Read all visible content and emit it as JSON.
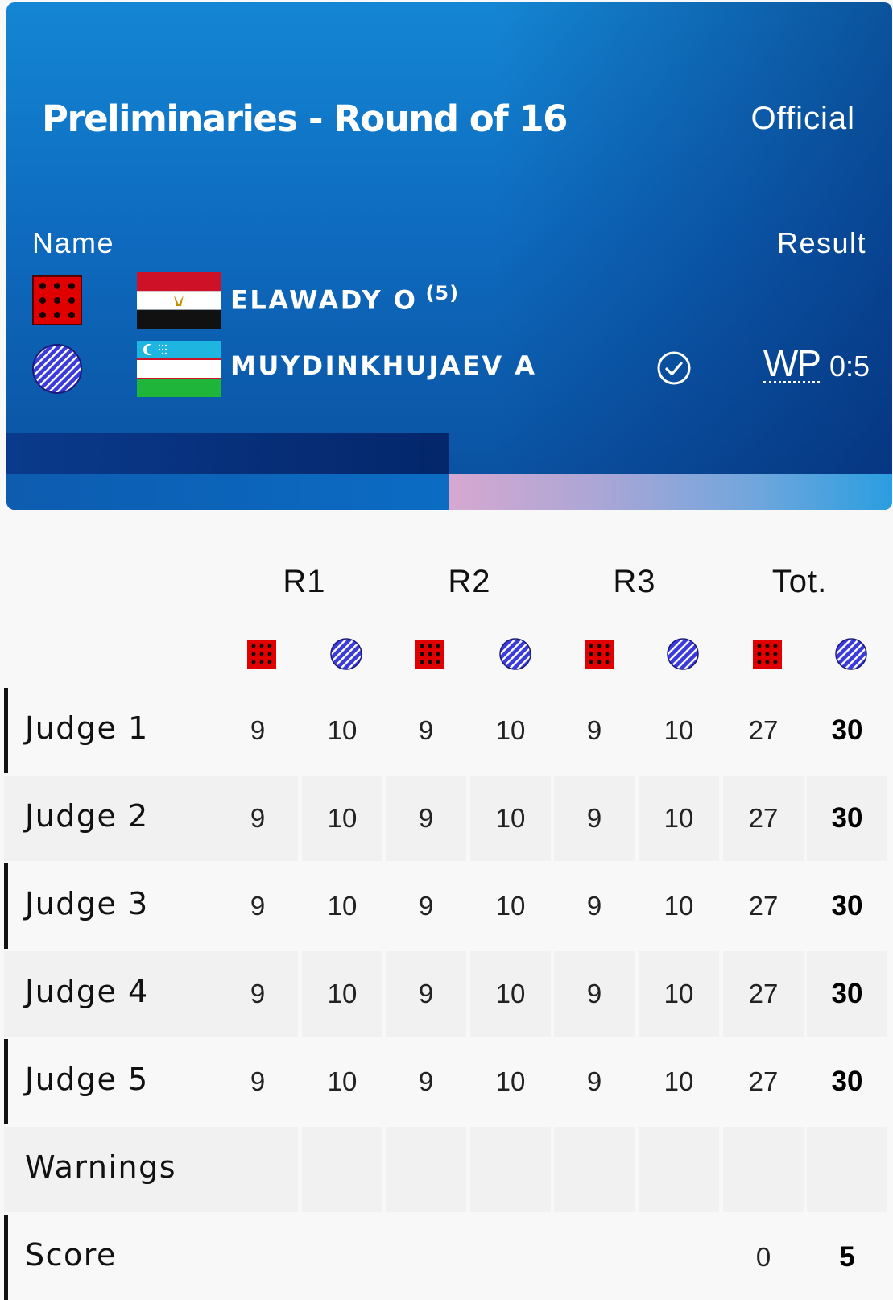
{
  "header": {
    "title": "Preliminaries - Round of 16",
    "status": "Official",
    "name_label": "Name",
    "result_label": "Result"
  },
  "athletes": {
    "red": {
      "corner": "red-corner-icon",
      "flag": "egypt-flag",
      "name": "ELAWADY O",
      "seed": "(5)"
    },
    "blue": {
      "corner": "blue-corner-icon",
      "flag": "uzbekistan-flag",
      "name": "MUYDINKHUJAEV A",
      "winner_icon": "check-circle-icon",
      "result_code": "WP",
      "score": "0:5"
    }
  },
  "colors": {
    "red_corner": "#e00000",
    "blue_corner": "#3b3bdc",
    "header_blue": "#0e6bbf"
  },
  "table": {
    "rounds": [
      "R1",
      "R2",
      "R3",
      "Tot."
    ],
    "rows": [
      {
        "label": "Judge 1",
        "values": [
          "9",
          "10",
          "9",
          "10",
          "9",
          "10",
          "27",
          "30"
        ]
      },
      {
        "label": "Judge 2",
        "values": [
          "9",
          "10",
          "9",
          "10",
          "9",
          "10",
          "27",
          "30"
        ]
      },
      {
        "label": "Judge 3",
        "values": [
          "9",
          "10",
          "9",
          "10",
          "9",
          "10",
          "27",
          "30"
        ]
      },
      {
        "label": "Judge 4",
        "values": [
          "9",
          "10",
          "9",
          "10",
          "9",
          "10",
          "27",
          "30"
        ]
      },
      {
        "label": "Judge 5",
        "values": [
          "9",
          "10",
          "9",
          "10",
          "9",
          "10",
          "27",
          "30"
        ]
      },
      {
        "label": "Warnings",
        "values": [
          "",
          "",
          "",
          "",
          "",
          "",
          "",
          ""
        ]
      },
      {
        "label": "Score",
        "values": [
          "",
          "",
          "",
          "",
          "",
          "",
          "0",
          "5"
        ]
      }
    ]
  }
}
